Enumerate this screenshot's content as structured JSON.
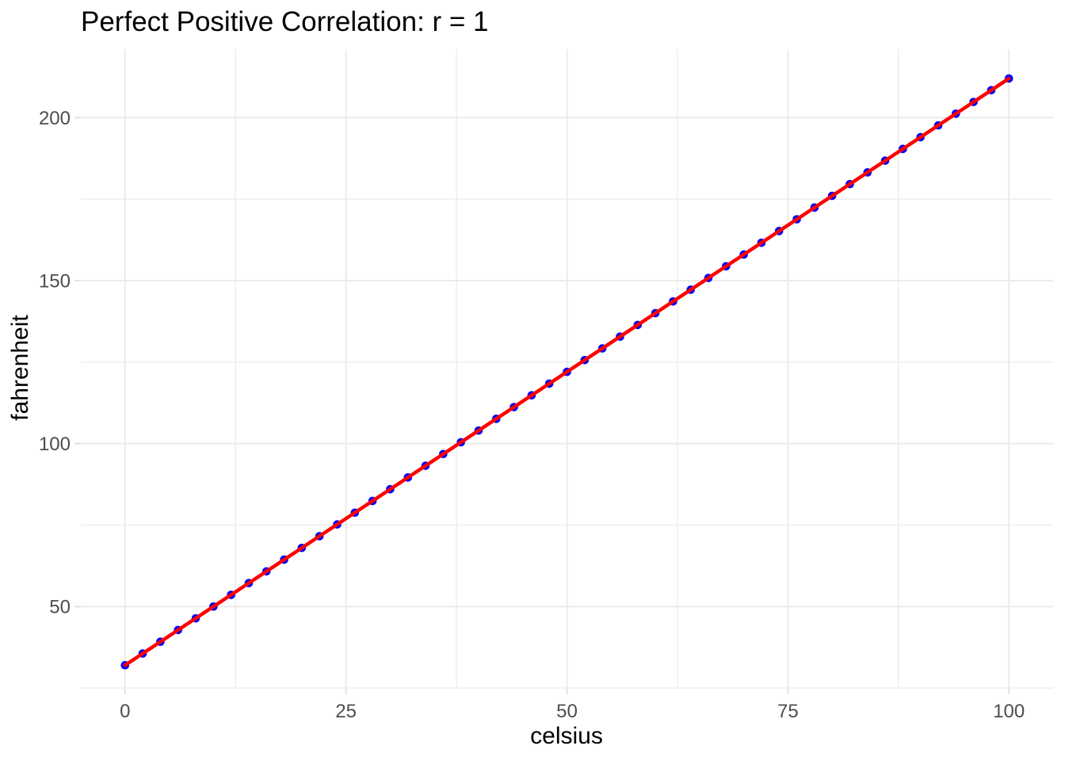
{
  "chart_data": {
    "type": "scatter",
    "title": "Perfect Positive Correlation: r = 1",
    "xlabel": "celsius",
    "ylabel": "fahrenheit",
    "xlim": [
      -5,
      105
    ],
    "ylim": [
      25,
      221
    ],
    "x_ticks": [
      0,
      25,
      50,
      75,
      100
    ],
    "y_ticks": [
      50,
      100,
      150,
      200
    ],
    "x_minor_gridlines": [
      12.5,
      37.5,
      62.5,
      87.5
    ],
    "y_minor_gridlines": [
      25,
      75,
      125,
      175
    ],
    "grid": "major-and-minor-on",
    "legend": "none",
    "series": [
      {
        "name": "data-points",
        "type": "points",
        "color": "#0000FF",
        "x": [
          0,
          2,
          4,
          6,
          8,
          10,
          12,
          14,
          16,
          18,
          20,
          22,
          24,
          26,
          28,
          30,
          32,
          34,
          36,
          38,
          40,
          42,
          44,
          46,
          48,
          50,
          52,
          54,
          56,
          58,
          60,
          62,
          64,
          66,
          68,
          70,
          72,
          74,
          76,
          78,
          80,
          82,
          84,
          86,
          88,
          90,
          92,
          94,
          96,
          98,
          100
        ],
        "y": [
          32,
          35.6,
          39.2,
          42.8,
          46.4,
          50,
          53.6,
          57.2,
          60.8,
          64.4,
          68,
          71.6,
          75.2,
          78.8,
          82.4,
          86,
          89.6,
          93.2,
          96.8,
          100.4,
          104,
          107.6,
          111.2,
          114.8,
          118.4,
          122,
          125.6,
          129.2,
          132.8,
          136.4,
          140,
          143.6,
          147.2,
          150.8,
          154.4,
          158,
          161.6,
          165.2,
          168.8,
          172.4,
          176,
          179.6,
          183.2,
          186.8,
          190.4,
          194,
          197.6,
          201.2,
          204.8,
          208.4,
          212
        ]
      },
      {
        "name": "trend-line",
        "type": "line",
        "color": "#FF0000",
        "x": [
          0,
          100
        ],
        "y": [
          32,
          212
        ]
      }
    ]
  },
  "colors": {
    "background": "#FFFFFF",
    "major_gridline": "#EBEBEB",
    "minor_gridline": "#EDEDED",
    "axis_tick": "#E2E2E2",
    "tick_label": "#4D4D4D",
    "title_text": "#000000"
  }
}
